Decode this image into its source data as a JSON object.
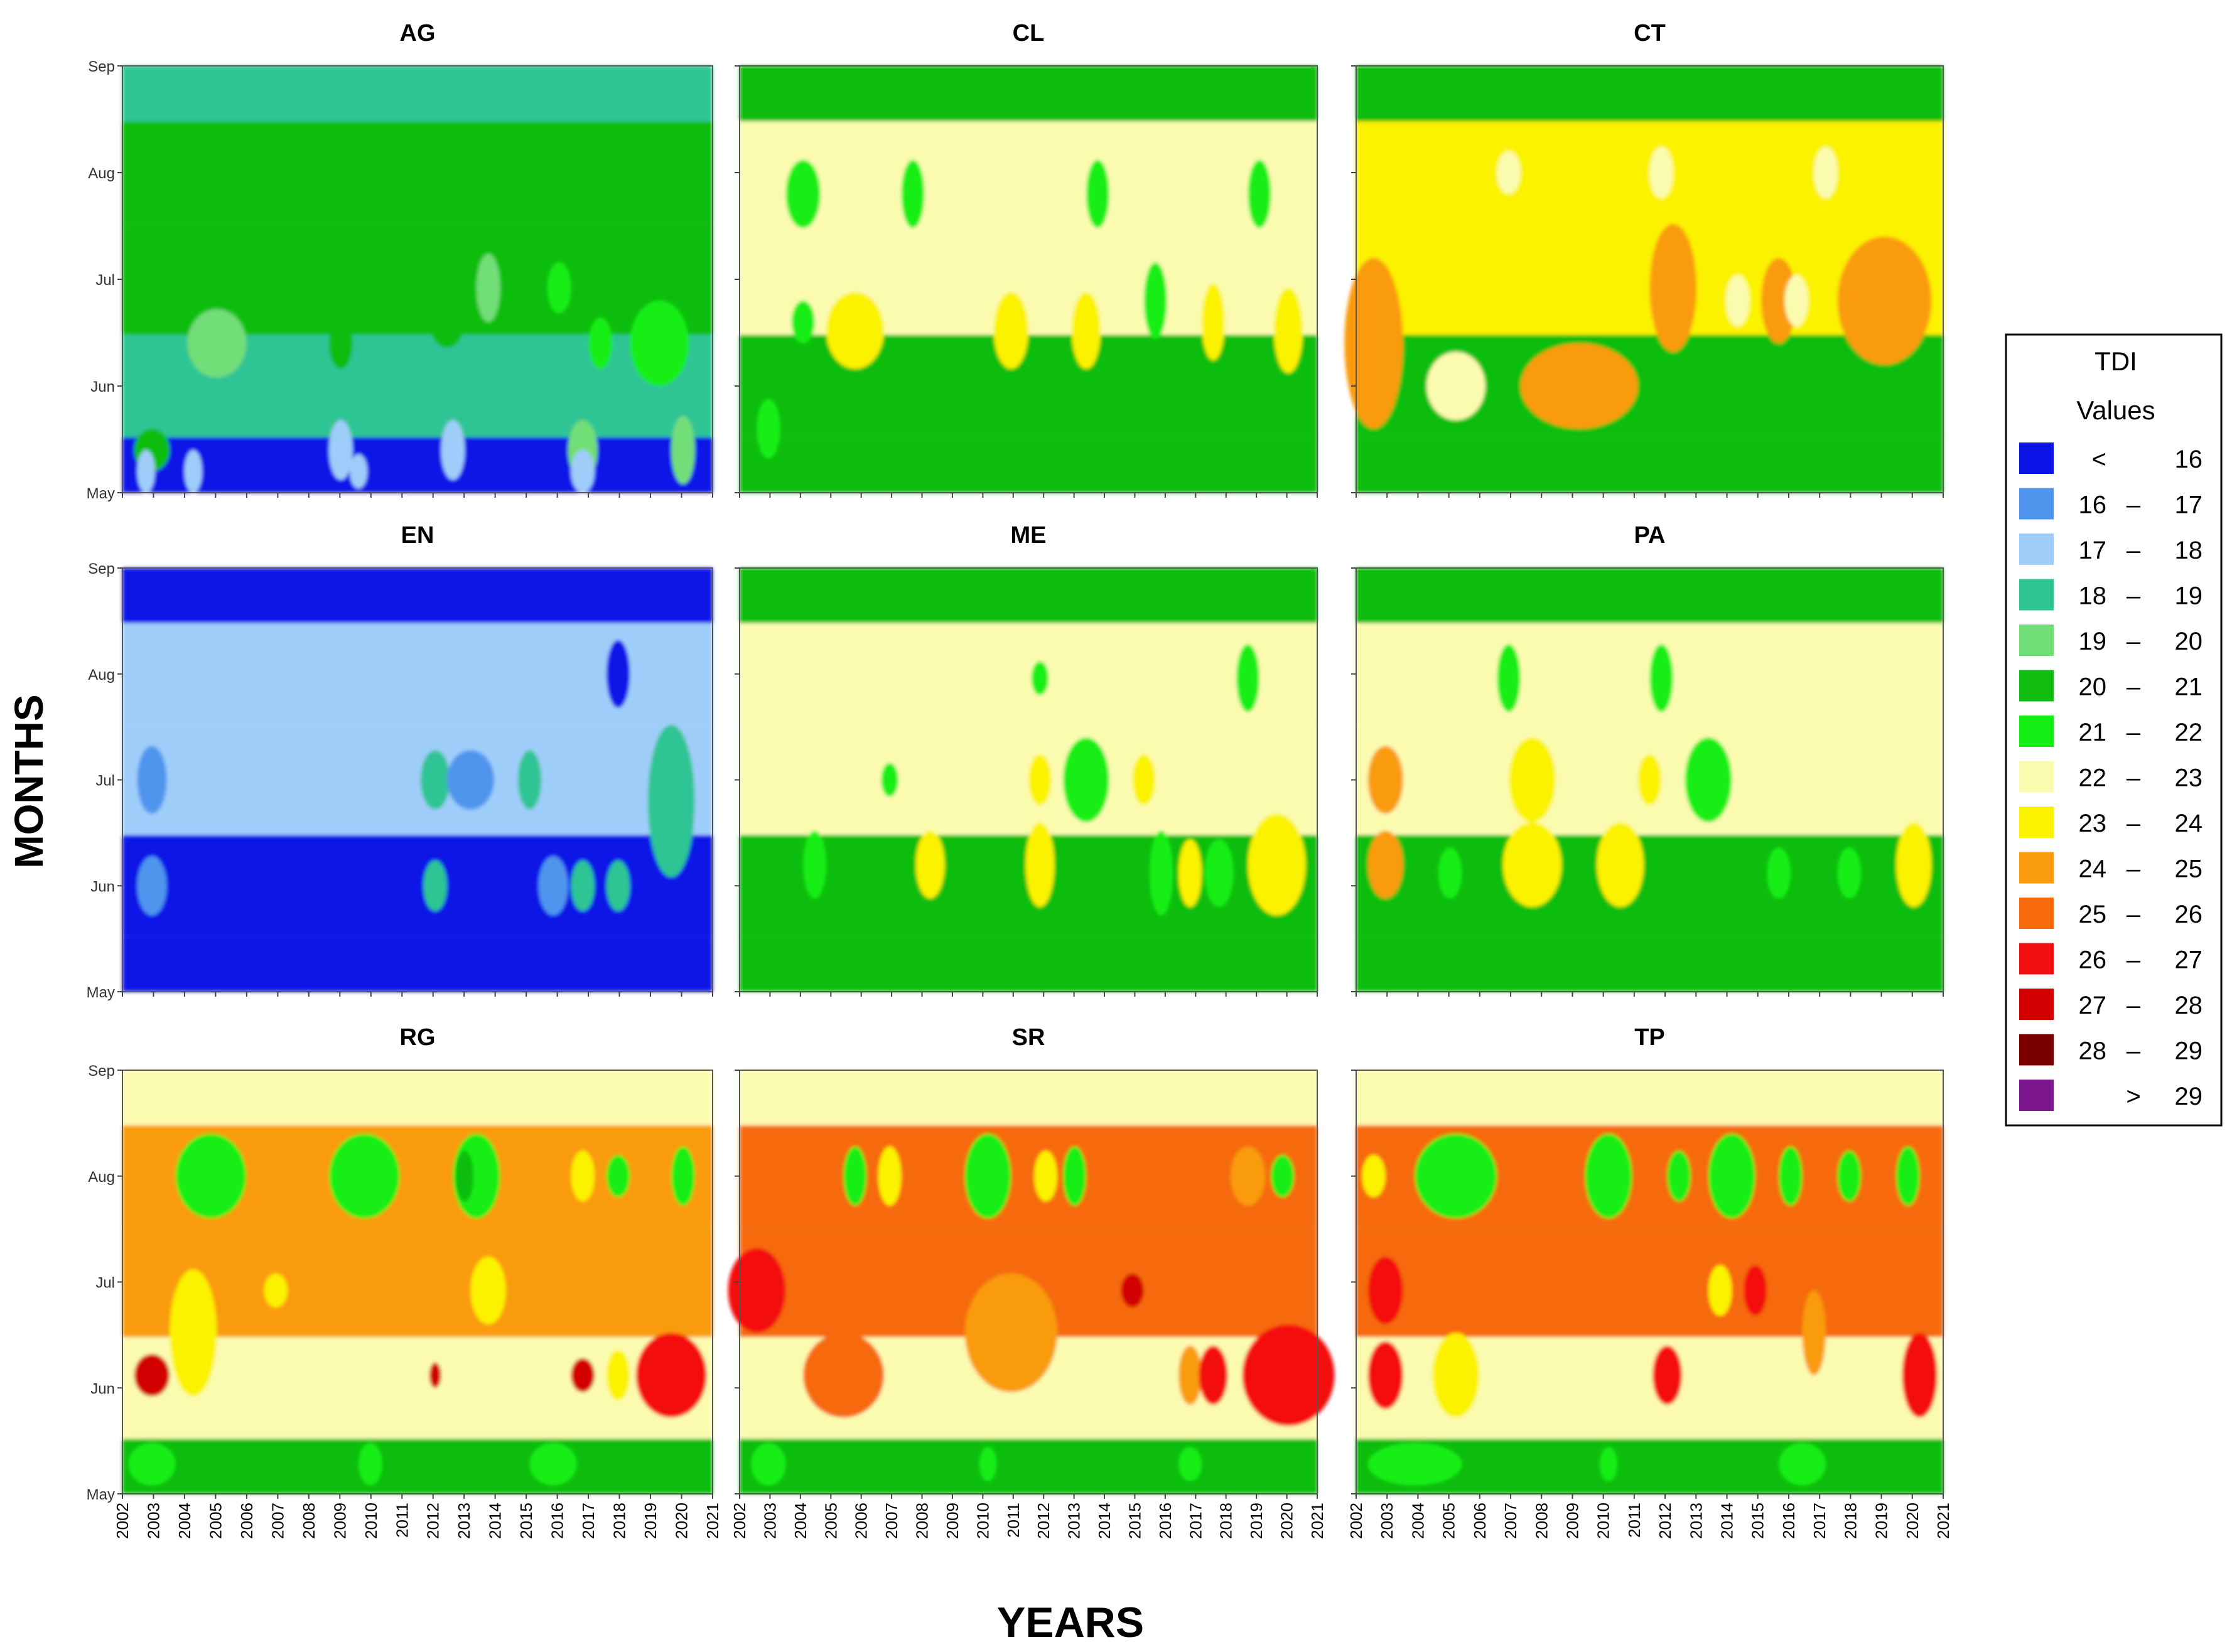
{
  "figure": {
    "xlabel": "YEARS",
    "ylabel": "MONTHS"
  },
  "legend": {
    "title_line1": "TDI",
    "title_line2": "Values",
    "entries": [
      {
        "low": "<",
        "sep": "",
        "high": "16",
        "color": "#0a14e6"
      },
      {
        "low": "16",
        "sep": "–",
        "high": "17",
        "color": "#4f95ee"
      },
      {
        "low": "17",
        "sep": "–",
        "high": "18",
        "color": "#9fcdfa"
      },
      {
        "low": "18",
        "sep": "–",
        "high": "19",
        "color": "#2fc494"
      },
      {
        "low": "19",
        "sep": "–",
        "high": "20",
        "color": "#72de78"
      },
      {
        "low": "20",
        "sep": "–",
        "high": "21",
        "color": "#10bd10"
      },
      {
        "low": "21",
        "sep": "–",
        "high": "22",
        "color": "#14ee14"
      },
      {
        "low": "22",
        "sep": "–",
        "high": "23",
        "color": "#fbfbb0"
      },
      {
        "low": "23",
        "sep": "–",
        "high": "24",
        "color": "#fbf200"
      },
      {
        "low": "24",
        "sep": "–",
        "high": "25",
        "color": "#f99b0c"
      },
      {
        "low": "25",
        "sep": "–",
        "high": "26",
        "color": "#f66a0c"
      },
      {
        "low": "26",
        "sep": "–",
        "high": "27",
        "color": "#f31010"
      },
      {
        "low": "27",
        "sep": "–",
        "high": "28",
        "color": "#d20000"
      },
      {
        "low": "28",
        "sep": "–",
        "high": "29",
        "color": "#7a0000"
      },
      {
        "low": "",
        "sep": ">",
        "high": "29",
        "color": "#7c168e"
      }
    ]
  },
  "chart_data": {
    "type": "heatmap",
    "title": "",
    "xlabel": "YEARS",
    "ylabel": "MONTHS",
    "months": [
      "May",
      "Jun",
      "Jul",
      "Aug",
      "Sep"
    ],
    "years": [
      "2002",
      "2003",
      "2004",
      "2005",
      "2006",
      "2007",
      "2008",
      "2009",
      "2010",
      "2011",
      "2012",
      "2013",
      "2014",
      "2015",
      "2016",
      "2017",
      "2018",
      "2019",
      "2020",
      "2021"
    ],
    "legend_bins": [
      "<16",
      "16-17",
      "17-18",
      "18-19",
      "19-20",
      "20-21",
      "21-22",
      "22-23",
      "23-24",
      "24-25",
      "25-26",
      "26-27",
      "27-28",
      "28-29",
      ">29"
    ],
    "panels": [
      {
        "name": "AG",
        "approx_tdi_by_month": {
          "May": "<16",
          "Jun": "18-19",
          "Jul": "20-21",
          "Aug": "20-21",
          "Sep": "18-19"
        }
      },
      {
        "name": "CL",
        "approx_tdi_by_month": {
          "May": "20-21",
          "Jun": "20-21",
          "Jul": "22-23",
          "Aug": "22-23",
          "Sep": "20-21"
        }
      },
      {
        "name": "CT",
        "approx_tdi_by_month": {
          "May": "20-21",
          "Jun": "20-21",
          "Jul": "23-24",
          "Aug": "23-24",
          "Sep": "20-21"
        }
      },
      {
        "name": "EN",
        "approx_tdi_by_month": {
          "May": "<16",
          "Jun": "<16",
          "Jul": "17-18",
          "Aug": "17-18",
          "Sep": "<16"
        }
      },
      {
        "name": "ME",
        "approx_tdi_by_month": {
          "May": "20-21",
          "Jun": "20-21",
          "Jul": "22-23",
          "Aug": "22-23",
          "Sep": "20-21"
        }
      },
      {
        "name": "PA",
        "approx_tdi_by_month": {
          "May": "20-21",
          "Jun": "20-21",
          "Jul": "22-23",
          "Aug": "22-23",
          "Sep": "20-21"
        }
      },
      {
        "name": "RG",
        "approx_tdi_by_month": {
          "May": "20-21",
          "Jun": "22-23",
          "Jul": "24-25",
          "Aug": "24-25",
          "Sep": "22-23"
        }
      },
      {
        "name": "SR",
        "approx_tdi_by_month": {
          "May": "20-21",
          "Jun": "22-23",
          "Jul": "25-26",
          "Aug": "25-26",
          "Sep": "22-23"
        }
      },
      {
        "name": "TP",
        "approx_tdi_by_month": {
          "May": "20-21",
          "Jun": "22-23",
          "Jul": "25-26",
          "Aug": "25-26",
          "Sep": "22-23"
        }
      }
    ]
  }
}
